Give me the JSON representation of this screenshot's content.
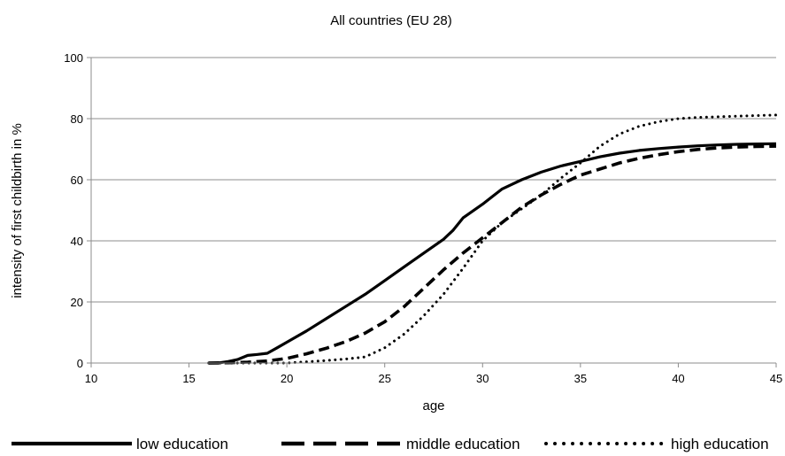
{
  "chart_data": {
    "type": "line",
    "title": "All countries (EU 28)",
    "xlabel": "age",
    "ylabel": "intensity of first childbirth in %",
    "xlim": [
      10,
      45
    ],
    "ylim": [
      0,
      100
    ],
    "xticks": [
      "10",
      "15",
      "20",
      "25",
      "30",
      "35",
      "40",
      "45"
    ],
    "yticks": [
      "0",
      "20",
      "40",
      "60",
      "80",
      "100"
    ],
    "grid": "horizontal",
    "legend_position": "bottom",
    "series": [
      {
        "name": "low education",
        "style": "solid",
        "x": [
          16,
          16.5,
          17,
          17.5,
          18,
          18.5,
          19,
          19.5,
          20,
          21,
          22,
          23,
          24,
          25,
          26,
          27,
          28,
          28.5,
          29,
          30,
          30.5,
          31,
          31.5,
          32,
          33,
          34,
          35,
          36,
          37,
          38,
          39,
          40,
          41,
          42,
          43,
          44,
          45
        ],
        "y": [
          0,
          0,
          0.5,
          1.2,
          2.5,
          2.8,
          3.2,
          5,
          6.8,
          10.5,
          14.5,
          18.5,
          22.5,
          27,
          31.5,
          36,
          40.5,
          43.5,
          47.5,
          52,
          54.5,
          57,
          58.5,
          60,
          62.5,
          64.5,
          66,
          67.5,
          68.7,
          69.6,
          70.2,
          70.7,
          71.1,
          71.4,
          71.6,
          71.7,
          71.8
        ]
      },
      {
        "name": "middle education",
        "style": "dashed",
        "x": [
          16,
          17,
          18,
          19,
          20,
          21,
          22,
          23,
          24,
          25,
          26,
          27,
          28,
          29,
          30,
          31,
          32,
          33,
          34,
          35,
          36,
          37,
          38,
          39,
          40,
          41,
          42,
          43,
          44,
          45
        ],
        "y": [
          0,
          0.1,
          0.3,
          0.7,
          1.5,
          3,
          4.8,
          7,
          9.8,
          13.5,
          18.5,
          24.5,
          30.5,
          36,
          41,
          46,
          51,
          55,
          58.5,
          61.5,
          63.5,
          65.5,
          67,
          68.2,
          69.2,
          69.9,
          70.4,
          70.7,
          70.9,
          71
        ]
      },
      {
        "name": "high education",
        "style": "dotted",
        "x": [
          16,
          17,
          18,
          19,
          20,
          21,
          22,
          23,
          24,
          25,
          26,
          27,
          28,
          29,
          30,
          31,
          32,
          33,
          34,
          35,
          36,
          37,
          38,
          39,
          40,
          41,
          42,
          43,
          44,
          45
        ],
        "y": [
          0,
          0,
          0,
          0,
          0,
          0.4,
          0.8,
          1.3,
          2,
          5,
          9.5,
          15.5,
          22.5,
          31,
          40,
          46,
          50.5,
          55,
          60.5,
          65.5,
          71,
          75,
          77.5,
          79,
          80,
          80.4,
          80.6,
          80.8,
          81,
          81.2
        ]
      }
    ]
  }
}
